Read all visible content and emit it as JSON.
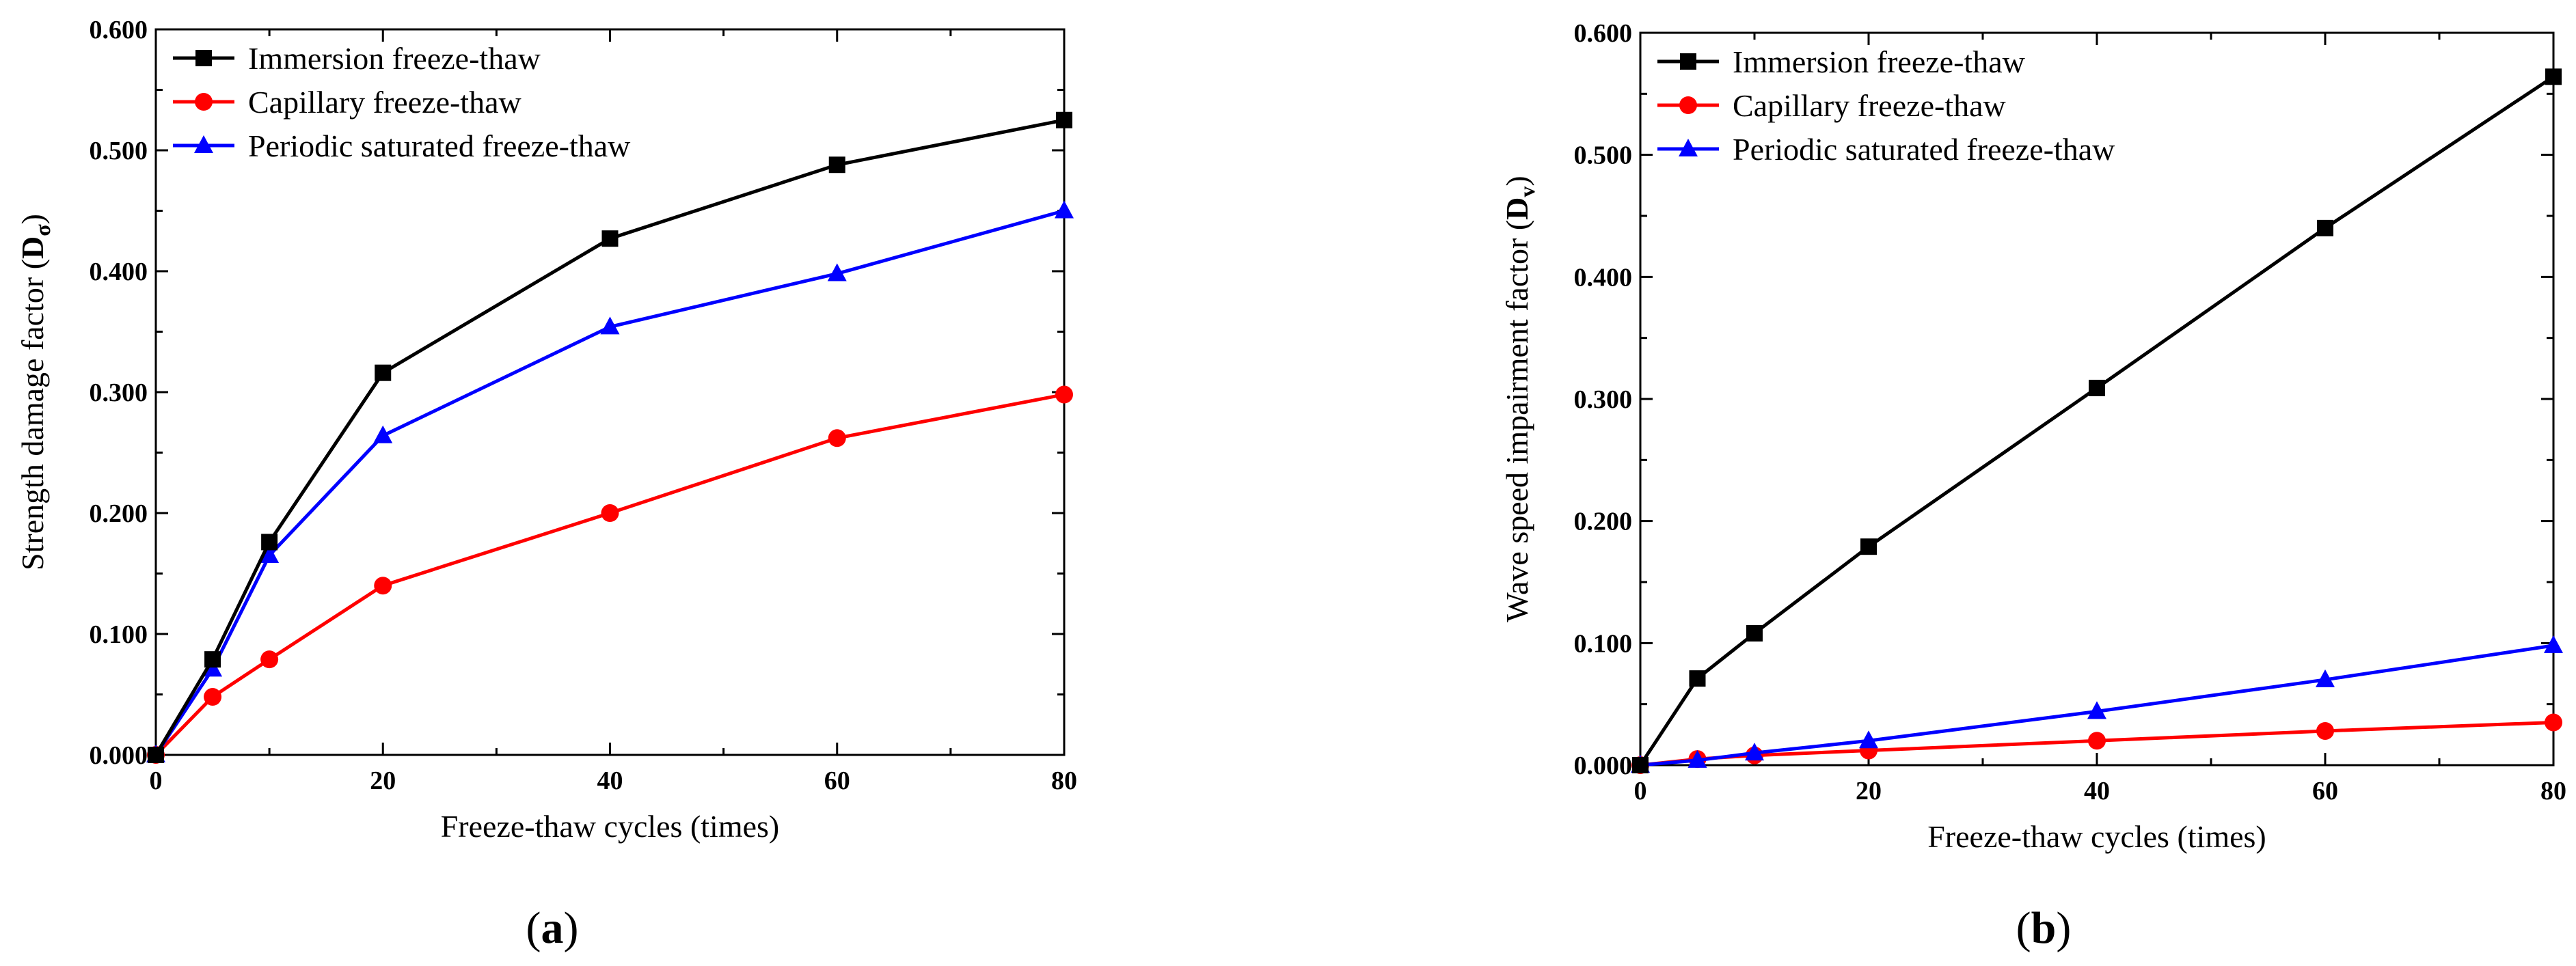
{
  "chart_data": [
    {
      "type": "line",
      "panel_label": "a",
      "xlabel": "Freeze-thaw cycles (times)",
      "ylabel": "Strength damage factor (",
      "ylabel_symbol": "D",
      "ylabel_subscript": "σ",
      "ylabel_close": ")",
      "x": [
        0,
        5,
        10,
        20,
        40,
        60,
        80
      ],
      "xlim": [
        0,
        80
      ],
      "ylim": [
        0,
        0.6
      ],
      "xticks": [
        "0",
        "20",
        "40",
        "60",
        "80"
      ],
      "yticks": [
        "0.000",
        "0.100",
        "0.200",
        "0.300",
        "0.400",
        "0.500",
        "0.600"
      ],
      "legend_position": "top-left",
      "series": [
        {
          "name": "Immersion freeze-thaw",
          "color": "#000000",
          "marker": "square",
          "values": [
            0,
            0.079,
            0.176,
            0.316,
            0.427,
            0.488,
            0.525
          ]
        },
        {
          "name": "Capillary freeze-thaw",
          "color": "#ff0000",
          "marker": "circle",
          "values": [
            0,
            0.048,
            0.079,
            0.14,
            0.2,
            0.262,
            0.298
          ]
        },
        {
          "name": "Periodic saturated freeze-thaw",
          "color": "#0000ff",
          "marker": "triangle",
          "values": [
            0,
            0.071,
            0.165,
            0.264,
            0.354,
            0.398,
            0.45
          ]
        }
      ]
    },
    {
      "type": "line",
      "panel_label": "b",
      "xlabel": "Freeze-thaw cycles (times)",
      "ylabel": "Wave speed impairment factor (",
      "ylabel_symbol": "D",
      "ylabel_subscript": "v",
      "ylabel_close": ")",
      "x": [
        0,
        5,
        10,
        20,
        40,
        60,
        80
      ],
      "xlim": [
        0,
        80
      ],
      "ylim": [
        0,
        0.6
      ],
      "xticks": [
        "0",
        "20",
        "40",
        "60",
        "80"
      ],
      "yticks": [
        "0.000",
        "0.100",
        "0.200",
        "0.300",
        "0.400",
        "0.500",
        "0.600"
      ],
      "legend_position": "top-left",
      "series": [
        {
          "name": "Immersion freeze-thaw",
          "color": "#000000",
          "marker": "square",
          "values": [
            0,
            0.071,
            0.108,
            0.179,
            0.309,
            0.44,
            0.564
          ]
        },
        {
          "name": "Capillary freeze-thaw",
          "color": "#ff0000",
          "marker": "circle",
          "values": [
            0,
            0.005,
            0.008,
            0.012,
            0.02,
            0.028,
            0.035
          ]
        },
        {
          "name": "Periodic saturated freeze-thaw",
          "color": "#0000ff",
          "marker": "triangle",
          "values": [
            0,
            0.004,
            0.01,
            0.02,
            0.044,
            0.07,
            0.098
          ]
        }
      ]
    }
  ]
}
